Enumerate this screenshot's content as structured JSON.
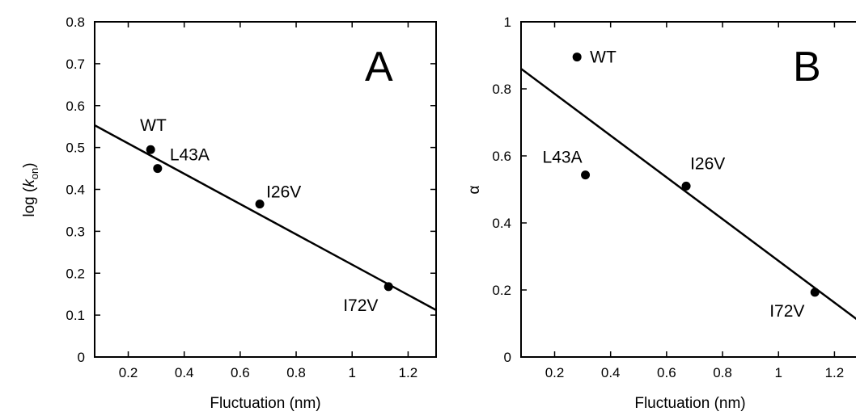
{
  "chart_data": [
    {
      "type": "scatter",
      "panel_label": "A",
      "xlabel": "Fluctuation (nm)",
      "ylabel_prefix": "log (",
      "ylabel_var": "k",
      "ylabel_sub": "on",
      "ylabel_suffix": ")",
      "xlim": [
        0.08,
        1.3
      ],
      "ylim": [
        0,
        0.8
      ],
      "xticks": [
        0.2,
        0.4,
        0.6,
        0.8,
        1,
        1.2
      ],
      "xtick_labels": [
        "0.2",
        "0.4",
        "0.6",
        "0.8",
        "1",
        "1.2"
      ],
      "yticks": [
        0,
        0.1,
        0.2,
        0.3,
        0.4,
        0.5,
        0.6,
        0.7,
        0.8
      ],
      "ytick_labels": [
        "0",
        "0.1",
        "0.2",
        "0.3",
        "0.4",
        "0.5",
        "0.6",
        "0.7",
        "0.8"
      ],
      "grid": false,
      "points": [
        {
          "label": "WT",
          "x": 0.28,
          "y": 0.495
        },
        {
          "label": "L43A",
          "x": 0.305,
          "y": 0.45
        },
        {
          "label": "I26V",
          "x": 0.67,
          "y": 0.365
        },
        {
          "label": "I72V",
          "x": 1.13,
          "y": 0.168
        }
      ],
      "fit_line": {
        "x": [
          0.08,
          1.3
        ],
        "y": [
          0.553,
          0.112
        ]
      }
    },
    {
      "type": "scatter",
      "panel_label": "B",
      "xlabel": "Fluctuation (nm)",
      "ylabel": "α",
      "xlim": [
        0.08,
        1.3
      ],
      "ylim": [
        0,
        1
      ],
      "xticks": [
        0.2,
        0.4,
        0.6,
        0.8,
        1,
        1.2
      ],
      "xtick_labels": [
        "0.2",
        "0.4",
        "0.6",
        "0.8",
        "1",
        "1.2"
      ],
      "yticks": [
        0,
        0.2,
        0.4,
        0.6,
        0.8,
        1
      ],
      "ytick_labels": [
        "0",
        "0.2",
        "0.4",
        "0.6",
        "0.8",
        "1"
      ],
      "grid": false,
      "points": [
        {
          "label": "WT",
          "x": 0.28,
          "y": 0.895
        },
        {
          "label": "L43A",
          "x": 0.31,
          "y": 0.543
        },
        {
          "label": "I26V",
          "x": 0.67,
          "y": 0.51
        },
        {
          "label": "I72V",
          "x": 1.13,
          "y": 0.193
        }
      ],
      "fit_line": {
        "x": [
          0.08,
          1.3
        ],
        "y": [
          0.86,
          0.1
        ]
      }
    }
  ]
}
